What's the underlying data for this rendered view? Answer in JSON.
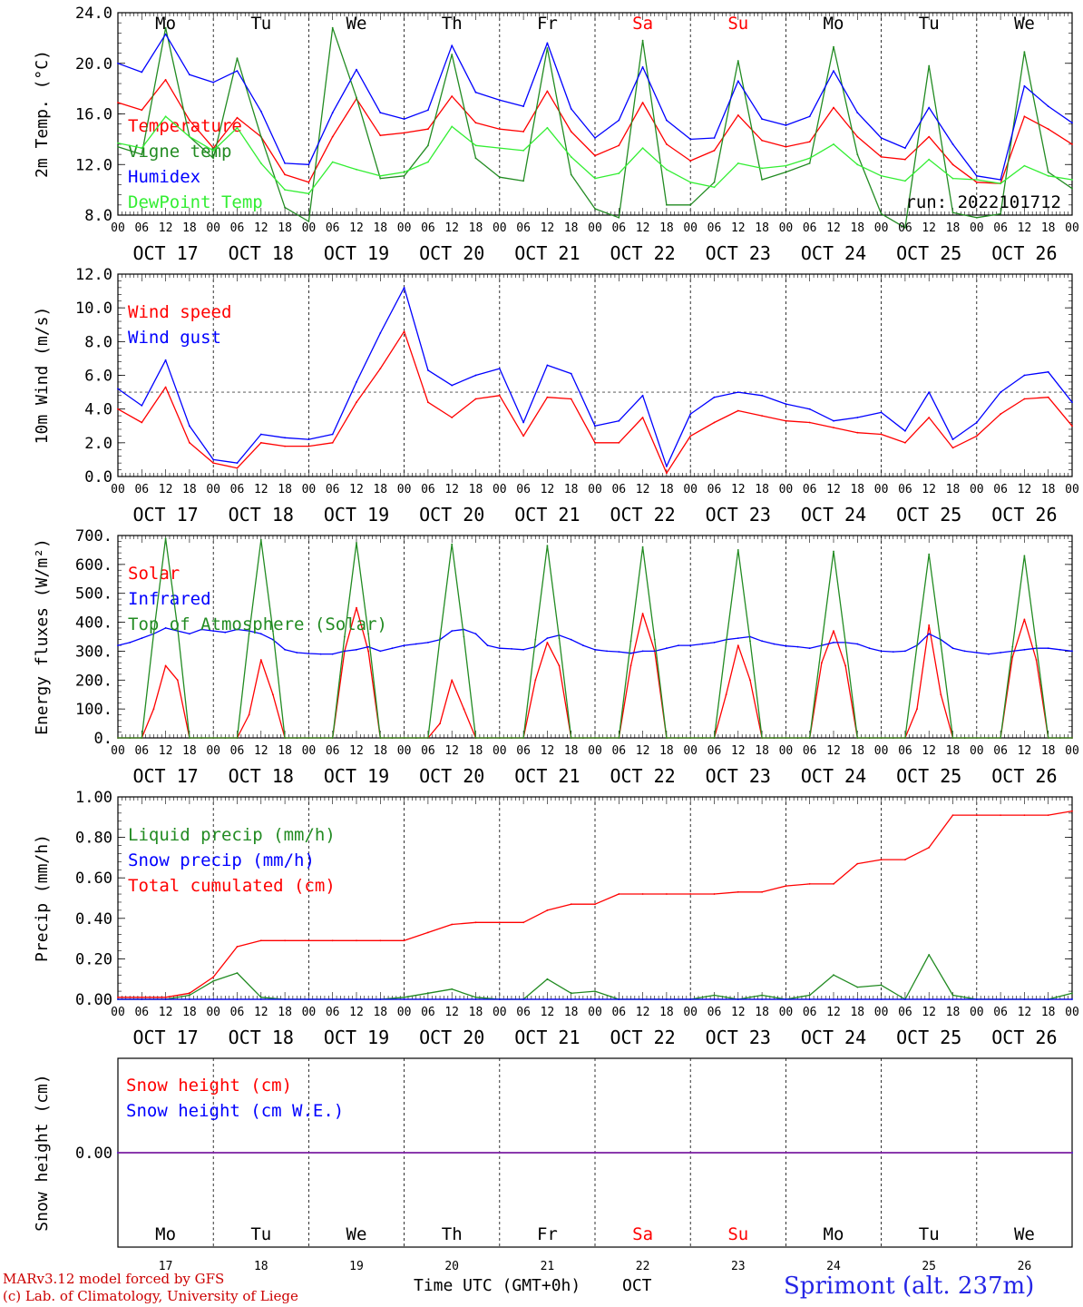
{
  "chart_data": [
    {
      "type": "line",
      "ylabel": "2m Temp. (°C)",
      "ylim": [
        8,
        24
      ],
      "yticks": [
        "8.0",
        "12.0",
        "16.0",
        "20.0",
        "24.0"
      ],
      "x_hours": [
        0,
        6,
        12,
        18,
        24,
        30,
        36,
        42,
        48,
        54,
        60,
        66,
        72,
        78,
        84,
        90,
        96,
        102,
        108,
        114,
        120,
        126,
        132,
        138,
        144,
        150,
        156,
        162,
        168,
        174,
        180,
        186,
        192,
        198,
        204,
        210,
        216,
        222,
        228,
        234,
        240
      ],
      "run_label": "run: 2022101712",
      "series": [
        {
          "name": "Temperature",
          "color": "#ff0000",
          "values": [
            16.9,
            16.3,
            18.7,
            15.5,
            13.3,
            15.7,
            14.2,
            11.2,
            10.6,
            14.2,
            17.2,
            14.3,
            14.5,
            14.8,
            17.4,
            15.3,
            14.8,
            14.6,
            17.8,
            14.6,
            12.7,
            13.5,
            16.9,
            13.6,
            12.3,
            13.1,
            15.9,
            13.9,
            13.4,
            13.8,
            16.5,
            14.2,
            12.6,
            12.4,
            14.2,
            12.0,
            10.6,
            10.5,
            15.8,
            14.8,
            13.6
          ]
        },
        {
          "name": "Vigne temp",
          "color": "#228b22",
          "values": [
            13.4,
            12.8,
            22.8,
            14.2,
            12.5,
            20.4,
            14.2,
            8.6,
            7.5,
            22.8,
            17.3,
            10.9,
            11.1,
            13.5,
            20.7,
            12.5,
            11.0,
            10.7,
            21.2,
            11.2,
            8.5,
            7.8,
            21.8,
            8.8,
            8.8,
            10.6,
            20.2,
            10.8,
            11.4,
            12.1,
            21.3,
            12.8,
            8.1,
            7.0,
            19.8,
            8.2,
            7.8,
            8.1,
            20.9,
            11.4,
            10.1
          ]
        },
        {
          "name": "Humidex",
          "color": "#0000ff",
          "values": [
            20.0,
            19.3,
            22.3,
            19.1,
            18.5,
            19.4,
            16.2,
            12.1,
            12.0,
            16.1,
            19.5,
            16.1,
            15.6,
            16.3,
            21.4,
            17.7,
            17.1,
            16.6,
            21.6,
            16.4,
            14.1,
            15.5,
            19.7,
            15.5,
            14.0,
            14.1,
            18.6,
            15.6,
            15.1,
            15.8,
            19.4,
            16.1,
            14.1,
            13.3,
            16.5,
            13.6,
            11.1,
            10.8,
            18.2,
            16.6,
            15.3
          ]
        },
        {
          "name": "DewPoint Temp",
          "color": "#33ee33",
          "values": [
            13.7,
            13.3,
            15.8,
            14.2,
            13.1,
            14.9,
            12.1,
            10.0,
            9.7,
            12.2,
            11.6,
            11.1,
            11.4,
            12.2,
            15.0,
            13.5,
            13.3,
            13.1,
            14.9,
            12.6,
            10.9,
            11.3,
            13.3,
            11.6,
            10.6,
            10.2,
            12.1,
            11.7,
            11.9,
            12.5,
            13.6,
            12.0,
            11.1,
            10.7,
            12.4,
            10.9,
            10.8,
            10.5,
            11.9,
            11.1,
            10.8
          ]
        }
      ]
    },
    {
      "type": "line",
      "ylabel": "10m Wind (m/s)",
      "ylim": [
        0,
        12
      ],
      "yticks": [
        "0.0",
        "2.0",
        "4.0",
        "6.0",
        "8.0",
        "10.0",
        "12.0"
      ],
      "ref_line": 5,
      "x_hours": [
        0,
        6,
        12,
        18,
        24,
        30,
        36,
        42,
        48,
        54,
        60,
        66,
        72,
        78,
        84,
        90,
        96,
        102,
        108,
        114,
        120,
        126,
        132,
        138,
        144,
        150,
        156,
        162,
        168,
        174,
        180,
        186,
        192,
        198,
        204,
        210,
        216,
        222,
        228,
        234,
        240
      ],
      "series": [
        {
          "name": "Wind speed",
          "color": "#ff0000",
          "values": [
            4.0,
            3.2,
            5.3,
            2.0,
            0.8,
            0.5,
            2.0,
            1.8,
            1.8,
            2.0,
            4.4,
            6.4,
            8.6,
            4.4,
            3.5,
            4.6,
            4.8,
            2.4,
            4.7,
            4.6,
            2.0,
            2.0,
            3.5,
            0.2,
            2.4,
            3.2,
            3.9,
            3.6,
            3.3,
            3.2,
            2.9,
            2.6,
            2.5,
            2.0,
            3.5,
            1.7,
            2.4,
            3.7,
            4.6,
            4.7,
            3.0
          ]
        },
        {
          "name": "Wind gust",
          "color": "#0000ff",
          "values": [
            5.2,
            4.2,
            6.9,
            3.0,
            1.0,
            0.8,
            2.5,
            2.3,
            2.2,
            2.5,
            5.6,
            8.5,
            11.2,
            6.3,
            5.4,
            6.0,
            6.4,
            3.2,
            6.6,
            6.1,
            3.0,
            3.3,
            4.8,
            0.6,
            3.7,
            4.7,
            5.0,
            4.8,
            4.3,
            4.0,
            3.3,
            3.5,
            3.8,
            2.7,
            5.0,
            2.2,
            3.2,
            5.0,
            6.0,
            6.2,
            4.4
          ]
        }
      ]
    },
    {
      "type": "line",
      "ylabel": "Energy fluxes (W/m²)",
      "ylim": [
        0,
        700
      ],
      "yticks": [
        "0.",
        "100.",
        "200.",
        "300.",
        "400.",
        "500.",
        "600.",
        "700."
      ],
      "x_hours": [
        0,
        3,
        6,
        9,
        12,
        15,
        18,
        21,
        24,
        27,
        30,
        33,
        36,
        39,
        42,
        45,
        48,
        51,
        54,
        57,
        60,
        63,
        66,
        69,
        72,
        75,
        78,
        81,
        84,
        87,
        90,
        93,
        96,
        99,
        102,
        105,
        108,
        111,
        114,
        117,
        120,
        123,
        126,
        129,
        132,
        135,
        138,
        141,
        144,
        147,
        150,
        153,
        156,
        159,
        162,
        165,
        168,
        171,
        174,
        177,
        180,
        183,
        186,
        189,
        192,
        195,
        198,
        201,
        204,
        207,
        210,
        213,
        216,
        219,
        222,
        225,
        228,
        231,
        234,
        237,
        240
      ],
      "series": [
        {
          "name": "Solar",
          "color": "#ff0000",
          "values": [
            0,
            0,
            0,
            100,
            250,
            200,
            0,
            0,
            0,
            0,
            0,
            80,
            270,
            150,
            0,
            0,
            0,
            0,
            0,
            300,
            450,
            300,
            0,
            0,
            0,
            0,
            0,
            50,
            200,
            100,
            0,
            0,
            0,
            0,
            0,
            200,
            330,
            250,
            0,
            0,
            0,
            0,
            0,
            250,
            430,
            300,
            0,
            0,
            0,
            0,
            0,
            150,
            320,
            200,
            0,
            0,
            0,
            0,
            0,
            260,
            370,
            250,
            0,
            0,
            0,
            0,
            0,
            100,
            390,
            150,
            0,
            0,
            0,
            0,
            0,
            280,
            410,
            270,
            0,
            0,
            0
          ]
        },
        {
          "name": "Infrared",
          "color": "#0000ff",
          "values": [
            320,
            330,
            345,
            360,
            380,
            370,
            360,
            375,
            370,
            365,
            375,
            370,
            360,
            340,
            305,
            295,
            292,
            290,
            290,
            300,
            305,
            315,
            300,
            310,
            320,
            325,
            330,
            340,
            370,
            375,
            360,
            320,
            310,
            308,
            305,
            315,
            345,
            355,
            340,
            320,
            305,
            300,
            298,
            293,
            300,
            300,
            310,
            320,
            320,
            325,
            330,
            340,
            345,
            350,
            335,
            325,
            318,
            315,
            310,
            320,
            330,
            330,
            325,
            310,
            300,
            298,
            300,
            320,
            360,
            340,
            310,
            300,
            295,
            290,
            295,
            300,
            305,
            310,
            310,
            305,
            300
          ]
        },
        {
          "name": "Top of Atmosphere (Solar)",
          "color": "#228b22",
          "values": [
            0,
            0,
            0,
            360,
            690,
            380,
            0,
            0,
            0,
            0,
            0,
            360,
            685,
            370,
            0,
            0,
            0,
            0,
            0,
            350,
            675,
            360,
            0,
            0,
            0,
            0,
            0,
            345,
            670,
            350,
            0,
            0,
            0,
            0,
            0,
            340,
            665,
            345,
            0,
            0,
            0,
            0,
            0,
            335,
            660,
            340,
            0,
            0,
            0,
            0,
            0,
            330,
            650,
            335,
            0,
            0,
            0,
            0,
            0,
            325,
            645,
            330,
            0,
            0,
            0,
            0,
            0,
            320,
            635,
            325,
            0,
            0,
            0,
            0,
            0,
            315,
            630,
            320,
            0,
            0,
            0
          ]
        }
      ]
    },
    {
      "type": "line",
      "ylabel": "Precip (mm/h)",
      "ylim": [
        0,
        1
      ],
      "yticks": [
        "0.00",
        "0.20",
        "0.40",
        "0.60",
        "0.80",
        "1.00"
      ],
      "x_hours": [
        0,
        6,
        12,
        18,
        24,
        30,
        36,
        42,
        48,
        54,
        60,
        66,
        72,
        78,
        84,
        90,
        96,
        102,
        108,
        114,
        120,
        126,
        132,
        138,
        144,
        150,
        156,
        162,
        168,
        174,
        180,
        186,
        192,
        198,
        204,
        210,
        216,
        222,
        228,
        234,
        240
      ],
      "series": [
        {
          "name": "Liquid precip (mm/h)",
          "color": "#228b22",
          "values": [
            0,
            0,
            0,
            0.02,
            0.09,
            0.13,
            0.01,
            0,
            0,
            0,
            0,
            0,
            0.01,
            0.03,
            0.05,
            0.01,
            0,
            0,
            0.1,
            0.03,
            0.04,
            0,
            0,
            0,
            0,
            0.02,
            0,
            0.02,
            0,
            0.02,
            0.12,
            0.06,
            0.07,
            0,
            0.22,
            0.02,
            0,
            0,
            0,
            0,
            0.03
          ]
        },
        {
          "name": "Snow precip (mm/h)",
          "color": "#0000ff",
          "values": [
            0,
            0,
            0,
            0,
            0,
            0,
            0,
            0,
            0,
            0,
            0,
            0,
            0,
            0,
            0,
            0,
            0,
            0,
            0,
            0,
            0,
            0,
            0,
            0,
            0,
            0,
            0,
            0,
            0,
            0,
            0,
            0,
            0,
            0,
            0,
            0,
            0,
            0,
            0,
            0,
            0
          ]
        },
        {
          "name": "Total cumulated (cm)",
          "color": "#ff0000",
          "values": [
            0.01,
            0.01,
            0.01,
            0.03,
            0.11,
            0.26,
            0.29,
            0.29,
            0.29,
            0.29,
            0.29,
            0.29,
            0.29,
            0.33,
            0.37,
            0.38,
            0.38,
            0.38,
            0.44,
            0.47,
            0.47,
            0.52,
            0.52,
            0.52,
            0.52,
            0.52,
            0.53,
            0.53,
            0.56,
            0.57,
            0.57,
            0.67,
            0.69,
            0.69,
            0.75,
            0.91,
            0.91,
            0.91,
            0.91,
            0.91,
            0.93
          ]
        }
      ]
    },
    {
      "type": "line",
      "ylabel": "Snow height (cm)",
      "ylim": [
        -1,
        1
      ],
      "yticks": [
        "0.00"
      ],
      "x_hours": [
        0,
        240
      ],
      "series": [
        {
          "name": "Snow height (cm)",
          "color": "#ff0000",
          "values": [
            0,
            0
          ]
        },
        {
          "name": "Snow height (cm W.E.)",
          "color": "#0000ff",
          "values": [
            0,
            0
          ]
        }
      ],
      "day_numbers": [
        "17",
        "18",
        "19",
        "20",
        "21",
        "22",
        "23",
        "24",
        "25",
        "26"
      ]
    }
  ],
  "x_axis": {
    "hour_labels": [
      "00",
      "06",
      "12",
      "18"
    ],
    "final_label": "00",
    "dates": [
      "OCT 17",
      "OCT 18",
      "OCT 19",
      "OCT 20",
      "OCT 21",
      "OCT 22",
      "OCT 23",
      "OCT 24",
      "OCT 25",
      "OCT 26"
    ],
    "weekdays": [
      "Mo",
      "Tu",
      "We",
      "Th",
      "Fr",
      "Sa",
      "Su",
      "Mo",
      "Tu",
      "We"
    ],
    "weekend_indices": [
      5,
      6
    ],
    "weekday_color": "#000000",
    "weekend_color": "#ff0000"
  },
  "footer": {
    "model_line": "MARv3.12 model forced by GFS",
    "lab_line": "(c) Lab. of Climatology, University of Liege",
    "axis_title": "Time UTC (GMT+0h)",
    "month_label": "OCT",
    "station": "Sprimont (alt. 237m)"
  },
  "colors": {
    "frame": "#000000",
    "grid": "#000000",
    "snow_line": "#7a1fa2"
  }
}
